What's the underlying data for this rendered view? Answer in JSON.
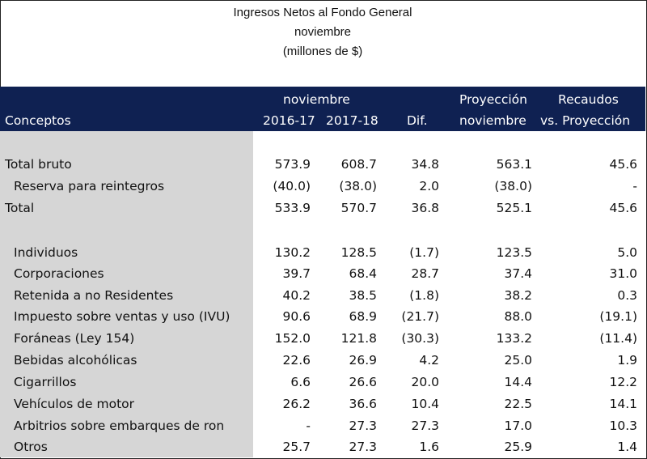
{
  "title": {
    "line1": "Ingresos Netos al Fondo General",
    "line2": "noviembre",
    "line3": "(millones de $)"
  },
  "header": {
    "conceptos": "Conceptos",
    "group_noviembre": "noviembre",
    "col_2016": "2016-17",
    "col_2017": "2017-18",
    "col_dif": "Dif.",
    "proy_line1": "Proyección",
    "proy_line2": "noviembre",
    "rec_line1": "Recaudos",
    "rec_line2": "vs. Proyección"
  },
  "rows": [
    {
      "label": "Total bruto",
      "v2016": "573.9",
      "v2017": "608.7",
      "dif": "34.8",
      "proy": "563.1",
      "rec": "45.6"
    },
    {
      "label": "Reserva para reintegros",
      "v2016": "(40.0)",
      "v2017": "(38.0)",
      "dif": "2.0",
      "proy": "(38.0)",
      "rec": "-"
    },
    {
      "label": "Total",
      "v2016": "533.9",
      "v2017": "570.7",
      "dif": "36.8",
      "proy": "525.1",
      "rec": "45.6"
    },
    {
      "label": "Individuos",
      "v2016": "130.2",
      "v2017": "128.5",
      "dif": "(1.7)",
      "proy": "123.5",
      "rec": "5.0"
    },
    {
      "label": "Corporaciones",
      "v2016": "39.7",
      "v2017": "68.4",
      "dif": "28.7",
      "proy": "37.4",
      "rec": "31.0"
    },
    {
      "label": "Retenida a no Residentes",
      "v2016": "40.2",
      "v2017": "38.5",
      "dif": "(1.8)",
      "proy": "38.2",
      "rec": "0.3"
    },
    {
      "label": "Impuesto sobre ventas y uso (IVU)",
      "v2016": "90.6",
      "v2017": "68.9",
      "dif": "(21.7)",
      "proy": "88.0",
      "rec": "(19.1)"
    },
    {
      "label": "Foráneas (Ley 154)",
      "v2016": "152.0",
      "v2017": "121.8",
      "dif": "(30.3)",
      "proy": "133.2",
      "rec": "(11.4)"
    },
    {
      "label": "Bebidas alcohólicas",
      "v2016": "22.6",
      "v2017": "26.9",
      "dif": "4.2",
      "proy": "25.0",
      "rec": "1.9"
    },
    {
      "label": "Cigarrillos",
      "v2016": "6.6",
      "v2017": "26.6",
      "dif": "20.0",
      "proy": "14.4",
      "rec": "12.2"
    },
    {
      "label": "Vehículos de motor",
      "v2016": "26.2",
      "v2017": "36.6",
      "dif": "10.4",
      "proy": "22.5",
      "rec": "14.1"
    },
    {
      "label": "Arbitrios sobre embarques de ron",
      "v2016": "-",
      "v2017": "27.3",
      "dif": "27.3",
      "proy": "17.0",
      "rec": "10.3"
    },
    {
      "label": "Otros",
      "v2016": "25.7",
      "v2017": "27.3",
      "dif": "1.6",
      "proy": "25.9",
      "rec": "1.4"
    }
  ]
}
